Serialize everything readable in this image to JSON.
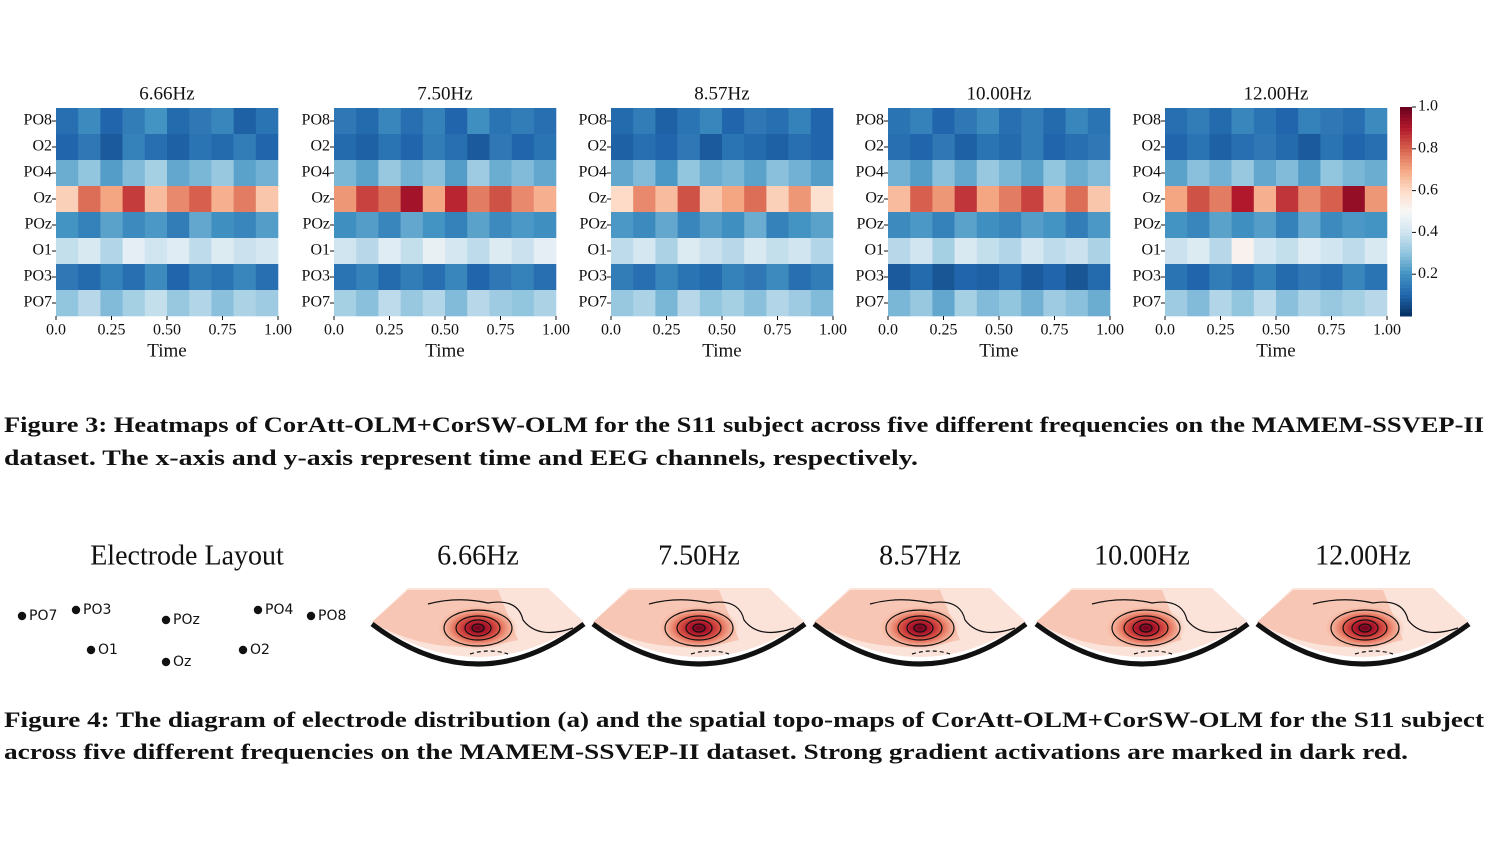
{
  "figure3": {
    "channels": [
      "PO8",
      "O2",
      "PO4",
      "Oz",
      "POz",
      "O1",
      "PO3",
      "PO7"
    ],
    "xticks": [
      {
        "value": 0,
        "label": "0.0"
      },
      0.25,
      {
        "value": 0.5,
        "label": "0.50"
      },
      0.75,
      {
        "value": 1,
        "label": "1.00"
      }
    ],
    "xlim": [
      0,
      1
    ],
    "xlabel": "Time",
    "colorbar": {
      "lim": [
        0,
        1.0
      ],
      "ticks": [
        {
          "value": 1,
          "label": "1.0"
        },
        0.8,
        0.6,
        0.4,
        0.2
      ]
    },
    "heatmaps": [
      {
        "title": "6.66Hz",
        "values": [
          [
            0.12,
            0.18,
            0.1,
            0.15,
            0.2,
            0.11,
            0.14,
            0.17,
            0.09,
            0.13
          ],
          [
            0.1,
            0.14,
            0.08,
            0.16,
            0.12,
            0.09,
            0.13,
            0.11,
            0.15,
            0.1
          ],
          [
            0.25,
            0.3,
            0.22,
            0.28,
            0.33,
            0.24,
            0.27,
            0.31,
            0.23,
            0.26
          ],
          [
            0.62,
            0.78,
            0.7,
            0.85,
            0.66,
            0.74,
            0.8,
            0.68,
            0.76,
            0.64
          ],
          [
            0.2,
            0.16,
            0.23,
            0.18,
            0.21,
            0.15,
            0.24,
            0.19,
            0.17,
            0.22
          ],
          [
            0.38,
            0.42,
            0.35,
            0.45,
            0.4,
            0.44,
            0.37,
            0.43,
            0.39,
            0.41
          ],
          [
            0.14,
            0.11,
            0.16,
            0.12,
            0.18,
            0.1,
            0.15,
            0.13,
            0.17,
            0.12
          ],
          [
            0.3,
            0.36,
            0.28,
            0.33,
            0.38,
            0.31,
            0.35,
            0.29,
            0.34,
            0.32
          ]
        ]
      },
      {
        "title": "7.50Hz",
        "values": [
          [
            0.14,
            0.11,
            0.17,
            0.12,
            0.16,
            0.1,
            0.19,
            0.13,
            0.15,
            0.12
          ],
          [
            0.11,
            0.09,
            0.13,
            0.1,
            0.15,
            0.12,
            0.08,
            0.14,
            0.1,
            0.13
          ],
          [
            0.27,
            0.23,
            0.31,
            0.26,
            0.29,
            0.22,
            0.32,
            0.25,
            0.28,
            0.24
          ],
          [
            0.72,
            0.84,
            0.78,
            0.92,
            0.7,
            0.88,
            0.76,
            0.82,
            0.74,
            0.68
          ],
          [
            0.19,
            0.22,
            0.17,
            0.24,
            0.2,
            0.16,
            0.23,
            0.18,
            0.21,
            0.19
          ],
          [
            0.4,
            0.36,
            0.44,
            0.38,
            0.46,
            0.41,
            0.37,
            0.43,
            0.39,
            0.45
          ],
          [
            0.13,
            0.16,
            0.11,
            0.15,
            0.12,
            0.17,
            0.1,
            0.14,
            0.16,
            0.12
          ],
          [
            0.33,
            0.29,
            0.37,
            0.31,
            0.35,
            0.28,
            0.36,
            0.32,
            0.3,
            0.34
          ]
        ]
      },
      {
        "title": "8.57Hz",
        "values": [
          [
            0.11,
            0.15,
            0.09,
            0.13,
            0.17,
            0.1,
            0.14,
            0.12,
            0.16,
            0.1
          ],
          [
            0.09,
            0.12,
            0.1,
            0.14,
            0.08,
            0.13,
            0.11,
            0.09,
            0.12,
            0.1
          ],
          [
            0.24,
            0.28,
            0.21,
            0.3,
            0.25,
            0.27,
            0.23,
            0.29,
            0.26,
            0.22
          ],
          [
            0.6,
            0.74,
            0.66,
            0.82,
            0.64,
            0.7,
            0.78,
            0.62,
            0.72,
            0.58
          ],
          [
            0.21,
            0.18,
            0.24,
            0.17,
            0.22,
            0.19,
            0.25,
            0.16,
            0.2,
            0.23
          ],
          [
            0.37,
            0.41,
            0.34,
            0.43,
            0.39,
            0.36,
            0.42,
            0.38,
            0.4,
            0.35
          ],
          [
            0.15,
            0.12,
            0.17,
            0.13,
            0.11,
            0.16,
            0.14,
            0.18,
            0.12,
            0.15
          ],
          [
            0.31,
            0.34,
            0.27,
            0.36,
            0.3,
            0.33,
            0.29,
            0.35,
            0.32,
            0.28
          ]
        ]
      },
      {
        "title": "10.00Hz",
        "values": [
          [
            0.13,
            0.16,
            0.1,
            0.14,
            0.18,
            0.12,
            0.15,
            0.11,
            0.17,
            0.13
          ],
          [
            0.12,
            0.1,
            0.14,
            0.09,
            0.13,
            0.11,
            0.15,
            0.1,
            0.12,
            0.14
          ],
          [
            0.26,
            0.22,
            0.29,
            0.24,
            0.31,
            0.27,
            0.23,
            0.3,
            0.25,
            0.28
          ],
          [
            0.66,
            0.8,
            0.72,
            0.86,
            0.7,
            0.76,
            0.84,
            0.68,
            0.78,
            0.64
          ],
          [
            0.18,
            0.21,
            0.16,
            0.23,
            0.19,
            0.17,
            0.22,
            0.2,
            0.15,
            0.21
          ],
          [
            0.36,
            0.4,
            0.33,
            0.42,
            0.38,
            0.35,
            0.41,
            0.37,
            0.39,
            0.34
          ],
          [
            0.08,
            0.11,
            0.07,
            0.1,
            0.09,
            0.12,
            0.08,
            0.1,
            0.07,
            0.11
          ],
          [
            0.27,
            0.31,
            0.24,
            0.33,
            0.28,
            0.3,
            0.26,
            0.32,
            0.29,
            0.25
          ]
        ]
      },
      {
        "title": "12.00Hz",
        "values": [
          [
            0.12,
            0.15,
            0.11,
            0.17,
            0.13,
            0.1,
            0.16,
            0.14,
            0.12,
            0.18
          ],
          [
            0.1,
            0.13,
            0.09,
            0.12,
            0.14,
            0.11,
            0.08,
            0.13,
            0.1,
            0.12
          ],
          [
            0.23,
            0.29,
            0.26,
            0.31,
            0.24,
            0.28,
            0.22,
            0.3,
            0.27,
            0.25
          ],
          [
            0.7,
            0.82,
            0.76,
            0.9,
            0.68,
            0.86,
            0.74,
            0.8,
            0.94,
            0.72
          ],
          [
            0.2,
            0.17,
            0.23,
            0.19,
            0.22,
            0.16,
            0.24,
            0.18,
            0.21,
            0.2
          ],
          [
            0.39,
            0.43,
            0.36,
            0.52,
            0.41,
            0.38,
            0.44,
            0.4,
            0.37,
            0.42
          ],
          [
            0.13,
            0.1,
            0.15,
            0.12,
            0.16,
            0.11,
            0.14,
            0.12,
            0.17,
            0.13
          ],
          [
            0.32,
            0.28,
            0.35,
            0.3,
            0.37,
            0.29,
            0.34,
            0.31,
            0.33,
            0.36
          ]
        ]
      }
    ],
    "caption_lines": [
      "Figure 3: Heatmaps of CorAtt-OLM+CorSW-OLM for the S11 subject across five different frequencies on the MAMEM-SSVEP-II",
      "dataset. The x-axis and y-axis represent time and EEG channels, respectively."
    ]
  },
  "figure4": {
    "layout_title": "Electrode Layout",
    "electrodes": [
      "PO7",
      "PO3",
      "POz",
      "PO4",
      "PO8",
      "O1",
      "Oz",
      "O2"
    ],
    "topomap_titles": [
      "6.66Hz",
      "7.50Hz",
      "8.57Hz",
      "10.00Hz",
      "12.00Hz"
    ],
    "caption_lines": [
      "Figure 4: The diagram of electrode distribution (a) and the spatial topo-maps of CorAtt-OLM+CorSW-OLM for the S11 subject",
      "across five different frequencies on the MAMEM-SSVEP-II dataset. Strong gradient activations are marked in dark red."
    ]
  }
}
